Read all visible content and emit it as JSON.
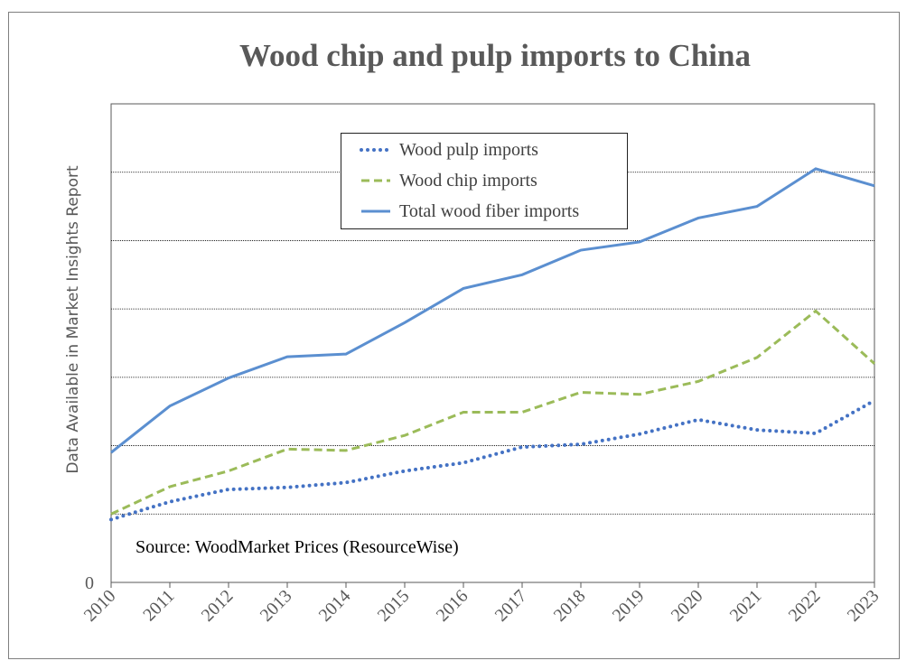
{
  "chart_data": {
    "type": "line",
    "title": "Wood chip and pulp imports to China",
    "ylabel": "Data Available in Market Insights Report",
    "xlabel": "",
    "source": "Source: WoodMarket Prices (ResourceWise)",
    "x": [
      2010,
      2011,
      2012,
      2013,
      2014,
      2015,
      2016,
      2017,
      2018,
      2019,
      2020,
      2021,
      2022,
      2023
    ],
    "y_tick_label_zero": "0",
    "ylim": [
      0,
      7
    ],
    "grid": "horizontal",
    "legend_position": "top-center",
    "series": [
      {
        "name": "Wood pulp imports",
        "style": "dotted",
        "color": "#4472C4",
        "values": [
          0.92,
          1.18,
          1.36,
          1.39,
          1.46,
          1.63,
          1.75,
          1.98,
          2.02,
          2.17,
          2.38,
          2.23,
          2.18,
          2.66
        ]
      },
      {
        "name": "Wood chip imports",
        "style": "dashed",
        "color": "#9BBB59",
        "values": [
          1.0,
          1.4,
          1.63,
          1.95,
          1.93,
          2.15,
          2.49,
          2.49,
          2.78,
          2.75,
          2.94,
          3.29,
          3.97,
          3.2
        ]
      },
      {
        "name": "Total wood fiber imports",
        "style": "solid",
        "color": "#5B8FD0",
        "values": [
          1.9,
          2.58,
          2.99,
          3.3,
          3.34,
          3.8,
          4.3,
          4.5,
          4.86,
          4.98,
          5.33,
          5.5,
          6.05,
          5.8
        ]
      }
    ]
  }
}
